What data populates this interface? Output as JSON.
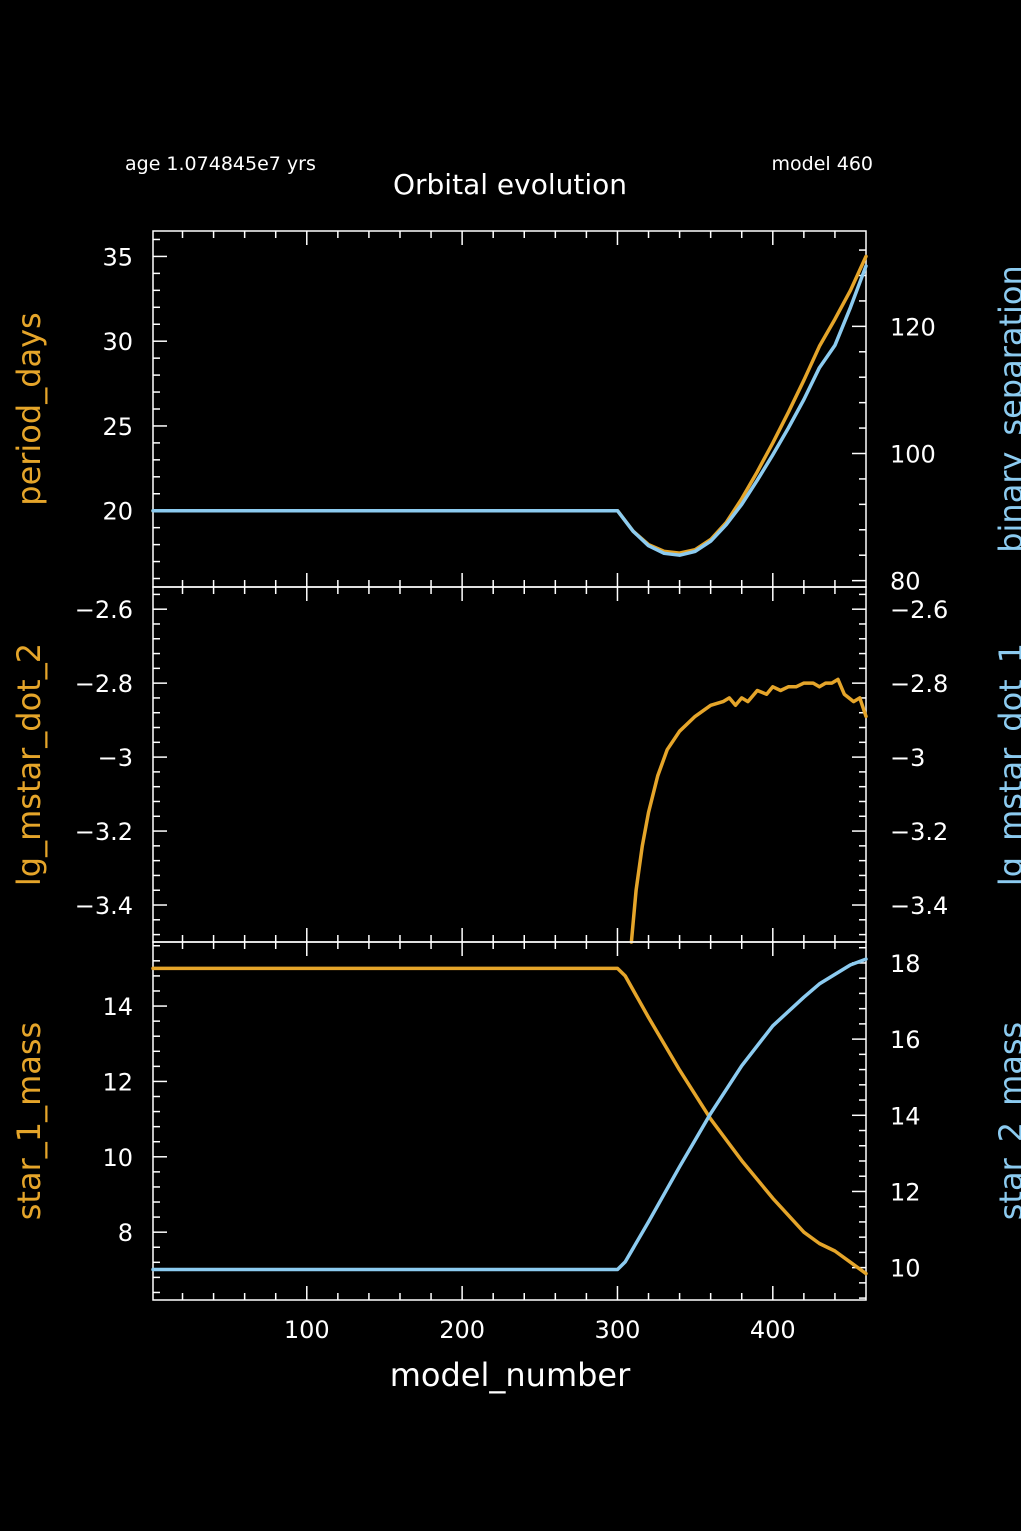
{
  "header": {
    "age_label": "age 1.074845e7 yrs",
    "model_label": "model 460",
    "title": "Orbital evolution"
  },
  "colors": {
    "background": "#000000",
    "axes": "#ffffff",
    "orange": "#e5a52a",
    "blue": "#8ccbf0"
  },
  "x_axis": {
    "label": "model_number",
    "range": [
      1,
      460
    ],
    "ticks": [
      100,
      200,
      300,
      400
    ]
  },
  "chart_data": [
    {
      "type": "line",
      "panel": "top",
      "x_range": [
        1,
        460
      ],
      "left_axis": {
        "label": "period_days",
        "range": [
          15.5,
          36.5
        ],
        "ticks": [
          20,
          25,
          30,
          35
        ]
      },
      "right_axis": {
        "label": "binary_separation",
        "range": [
          79,
          135
        ],
        "ticks": [
          80,
          100,
          120
        ]
      },
      "series": [
        {
          "name": "period_days",
          "axis": "left",
          "color": "orange",
          "x": [
            1,
            300,
            310,
            320,
            330,
            340,
            350,
            360,
            370,
            380,
            390,
            400,
            410,
            420,
            430,
            440,
            450,
            460
          ],
          "y": [
            20.0,
            20.0,
            18.8,
            18.0,
            17.6,
            17.5,
            17.7,
            18.3,
            19.3,
            20.7,
            22.3,
            24.0,
            25.8,
            27.7,
            29.7,
            31.3,
            33.0,
            35.0
          ]
        },
        {
          "name": "binary_separation",
          "axis": "right",
          "color": "blue",
          "x": [
            1,
            300,
            310,
            320,
            330,
            340,
            350,
            360,
            370,
            380,
            390,
            400,
            410,
            420,
            430,
            440,
            450,
            460
          ],
          "y": [
            91.0,
            91.0,
            87.8,
            85.5,
            84.3,
            84.0,
            84.6,
            86.2,
            88.8,
            92.0,
            95.8,
            99.8,
            104.0,
            108.5,
            113.5,
            117.0,
            123.0,
            129.5
          ]
        }
      ]
    },
    {
      "type": "line",
      "panel": "middle",
      "x_range": [
        1,
        460
      ],
      "left_axis": {
        "label": "lg_mstar_dot_2",
        "range": [
          -3.5,
          -2.54
        ],
        "ticks": [
          -2.6,
          -2.8,
          -3,
          -3.2,
          -3.4
        ]
      },
      "right_axis": {
        "label": "lg_mstar_dot_1",
        "range": [
          -3.5,
          -2.54
        ],
        "ticks": [
          -2.6,
          -2.8,
          -3,
          -3.2,
          -3.4
        ]
      },
      "series": [
        {
          "name": "lg_mstar_dot_2",
          "axis": "left",
          "color": "orange",
          "x": [
            309,
            312,
            316,
            320,
            326,
            332,
            340,
            350,
            360,
            368,
            372,
            376,
            380,
            384,
            390,
            396,
            400,
            405,
            410,
            415,
            420,
            426,
            430,
            434,
            438,
            442,
            446,
            452,
            456,
            460
          ],
          "y": [
            -3.5,
            -3.36,
            -3.24,
            -3.15,
            -3.05,
            -2.98,
            -2.93,
            -2.89,
            -2.86,
            -2.85,
            -2.84,
            -2.86,
            -2.84,
            -2.85,
            -2.82,
            -2.83,
            -2.81,
            -2.82,
            -2.81,
            -2.81,
            -2.8,
            -2.8,
            -2.81,
            -2.8,
            -2.8,
            -2.79,
            -2.83,
            -2.85,
            -2.84,
            -2.89
          ]
        }
      ]
    },
    {
      "type": "line",
      "panel": "bottom",
      "x_range": [
        1,
        460
      ],
      "left_axis": {
        "label": "star_1_mass",
        "range": [
          6.2,
          15.7
        ],
        "ticks": [
          8,
          10,
          12,
          14
        ]
      },
      "right_axis": {
        "label": "star_2_mass",
        "range": [
          9.15,
          18.55
        ],
        "ticks": [
          10,
          12,
          14,
          16,
          18
        ]
      },
      "series": [
        {
          "name": "star_1_mass",
          "axis": "left",
          "color": "orange",
          "x": [
            1,
            300,
            305,
            320,
            340,
            360,
            380,
            400,
            420,
            430,
            440,
            450,
            460
          ],
          "y": [
            15.0,
            15.0,
            14.8,
            13.7,
            12.3,
            11.0,
            9.9,
            8.9,
            8.0,
            7.7,
            7.5,
            7.2,
            6.9
          ]
        },
        {
          "name": "star_2_mass",
          "axis": "right",
          "color": "blue",
          "x": [
            1,
            300,
            305,
            320,
            340,
            360,
            380,
            400,
            420,
            430,
            440,
            450,
            460
          ],
          "y": [
            9.95,
            9.95,
            10.15,
            11.2,
            12.65,
            14.05,
            15.3,
            16.35,
            17.1,
            17.45,
            17.7,
            17.95,
            18.1
          ]
        }
      ]
    }
  ]
}
